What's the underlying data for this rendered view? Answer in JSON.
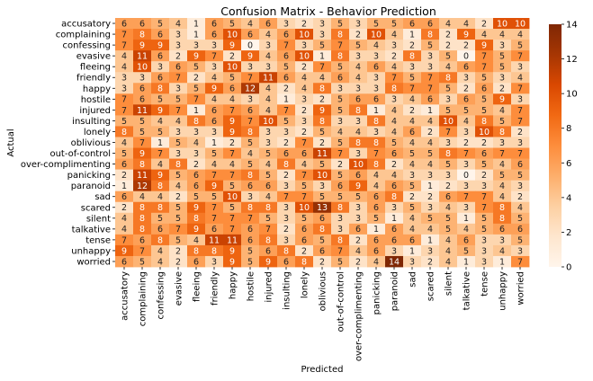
{
  "chart_data": {
    "type": "heatmap",
    "title": "Confusion Matrix - Behavior Prediction",
    "xlabel": "Predicted",
    "ylabel": "Actual",
    "labels": [
      "accusatory",
      "complaining",
      "confessing",
      "evasive",
      "fleeing",
      "friendly",
      "happy",
      "hostile",
      "injured",
      "insulting",
      "lonely",
      "oblivious",
      "out-of-control",
      "over-complimenting",
      "panicking",
      "paranoid",
      "sad",
      "scared",
      "silent",
      "talkative",
      "tense",
      "unhappy",
      "worried"
    ],
    "matrix": [
      [
        6,
        6,
        5,
        4,
        1,
        6,
        5,
        4,
        6,
        3,
        2,
        3,
        5,
        3,
        5,
        5,
        6,
        6,
        4,
        4,
        2,
        10,
        10
      ],
      [
        7,
        8,
        6,
        3,
        1,
        6,
        10,
        6,
        4,
        6,
        10,
        3,
        8,
        2,
        10,
        4,
        1,
        8,
        2,
        9,
        4,
        4,
        4
      ],
      [
        7,
        9,
        9,
        3,
        3,
        3,
        9,
        0,
        3,
        7,
        3,
        5,
        7,
        5,
        4,
        3,
        2,
        5,
        2,
        2,
        9,
        3,
        5
      ],
      [
        4,
        11,
        6,
        2,
        9,
        7,
        2,
        9,
        4,
        6,
        10,
        1,
        8,
        3,
        3,
        2,
        8,
        3,
        5,
        0,
        7,
        5,
        7
      ],
      [
        4,
        10,
        3,
        6,
        5,
        3,
        10,
        3,
        3,
        5,
        2,
        7,
        5,
        4,
        6,
        4,
        3,
        3,
        4,
        6,
        7,
        5,
        3
      ],
      [
        3,
        3,
        6,
        7,
        2,
        4,
        5,
        7,
        11,
        6,
        4,
        4,
        6,
        4,
        3,
        7,
        5,
        7,
        8,
        3,
        5,
        3,
        4
      ],
      [
        3,
        6,
        8,
        3,
        5,
        9,
        6,
        12,
        4,
        2,
        4,
        8,
        3,
        3,
        3,
        8,
        7,
        7,
        5,
        2,
        6,
        2,
        7
      ],
      [
        7,
        6,
        5,
        5,
        7,
        4,
        4,
        3,
        4,
        1,
        3,
        2,
        5,
        6,
        6,
        3,
        4,
        6,
        3,
        6,
        5,
        9,
        3
      ],
      [
        7,
        11,
        9,
        7,
        1,
        6,
        7,
        6,
        4,
        7,
        2,
        9,
        5,
        8,
        1,
        4,
        2,
        1,
        5,
        5,
        5,
        4,
        7
      ],
      [
        5,
        5,
        4,
        4,
        8,
        6,
        9,
        7,
        10,
        5,
        3,
        8,
        3,
        3,
        8,
        4,
        4,
        4,
        10,
        4,
        8,
        5,
        7
      ],
      [
        8,
        5,
        5,
        3,
        3,
        3,
        9,
        8,
        3,
        3,
        2,
        5,
        4,
        4,
        3,
        4,
        6,
        2,
        7,
        3,
        10,
        8,
        2
      ],
      [
        4,
        7,
        1,
        5,
        4,
        1,
        2,
        5,
        3,
        2,
        7,
        2,
        5,
        8,
        8,
        5,
        4,
        4,
        3,
        2,
        2,
        3,
        3
      ],
      [
        5,
        9,
        7,
        3,
        3,
        5,
        7,
        4,
        5,
        6,
        6,
        11,
        7,
        3,
        7,
        6,
        5,
        5,
        8,
        7,
        6,
        7,
        7
      ],
      [
        6,
        8,
        4,
        8,
        2,
        4,
        4,
        5,
        4,
        8,
        4,
        5,
        2,
        10,
        8,
        2,
        4,
        4,
        5,
        3,
        5,
        4,
        6
      ],
      [
        2,
        11,
        9,
        5,
        6,
        7,
        7,
        8,
        5,
        2,
        7,
        10,
        5,
        6,
        4,
        4,
        3,
        3,
        3,
        0,
        2,
        5,
        5
      ],
      [
        1,
        12,
        8,
        4,
        6,
        9,
        5,
        6,
        6,
        3,
        5,
        3,
        6,
        9,
        4,
        6,
        5,
        1,
        2,
        3,
        3,
        4,
        3
      ],
      [
        6,
        4,
        4,
        2,
        5,
        5,
        10,
        3,
        4,
        7,
        7,
        5,
        5,
        5,
        6,
        8,
        2,
        2,
        6,
        7,
        7,
        4,
        2
      ],
      [
        2,
        8,
        8,
        5,
        9,
        7,
        5,
        8,
        8,
        3,
        10,
        13,
        8,
        3,
        6,
        3,
        5,
        3,
        4,
        3,
        7,
        8,
        4
      ],
      [
        4,
        8,
        5,
        5,
        8,
        7,
        7,
        7,
        5,
        3,
        5,
        6,
        3,
        3,
        5,
        1,
        4,
        5,
        5,
        1,
        5,
        8,
        5
      ],
      [
        4,
        8,
        6,
        7,
        9,
        6,
        7,
        6,
        7,
        2,
        6,
        8,
        3,
        6,
        1,
        6,
        4,
        4,
        5,
        4,
        5,
        6,
        6
      ],
      [
        7,
        6,
        8,
        5,
        4,
        11,
        11,
        6,
        8,
        3,
        6,
        5,
        8,
        2,
        6,
        6,
        6,
        1,
        4,
        6,
        3,
        3,
        5
      ],
      [
        9,
        7,
        4,
        2,
        8,
        8,
        9,
        5,
        6,
        8,
        2,
        6,
        7,
        4,
        6,
        3,
        1,
        3,
        4,
        5,
        3,
        4,
        3
      ],
      [
        6,
        5,
        4,
        2,
        6,
        3,
        9,
        5,
        9,
        6,
        8,
        2,
        5,
        2,
        4,
        14,
        3,
        2,
        4,
        1,
        3,
        1,
        7
      ]
    ],
    "colorbar": {
      "min": 0,
      "max": 14,
      "ticks": [
        0,
        2,
        4,
        6,
        8,
        10,
        12,
        14
      ]
    },
    "colormap": [
      "#fff5eb",
      "#fee6ce",
      "#fdd0a2",
      "#fdae6b",
      "#fd8d3c",
      "#f16913",
      "#d94801",
      "#a63603",
      "#7f2704"
    ]
  }
}
